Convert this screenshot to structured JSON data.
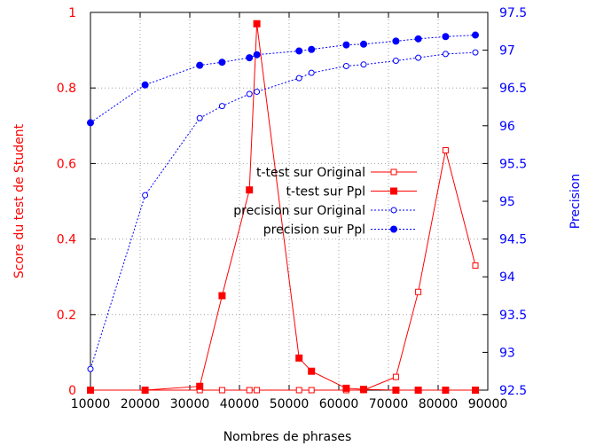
{
  "chart_data": {
    "type": "line",
    "xlabel": "Nombres de phrases",
    "ylabel_left": "Score du test de Student",
    "ylabel_right": "Precision",
    "xlim": [
      10000,
      90000
    ],
    "ylim_left": [
      0,
      1
    ],
    "ylim_right": [
      92.5,
      97.5
    ],
    "x_ticks": [
      10000,
      20000,
      30000,
      40000,
      50000,
      60000,
      70000,
      80000,
      90000
    ],
    "y_left_ticks": [
      0,
      0.2,
      0.4,
      0.6,
      0.8,
      1
    ],
    "y_right_ticks": [
      92.5,
      93,
      93.5,
      94,
      94.5,
      95,
      95.5,
      96,
      96.5,
      97,
      97.5
    ],
    "grid": true,
    "legend_position": "center",
    "colors": {
      "red": "#ff0000",
      "blue": "#0000ff",
      "grid": "#a0a0a0"
    },
    "series": [
      {
        "name": "t-test sur Original",
        "axis": "left",
        "style": "solid",
        "marker": "open-square",
        "color": "#ff0000",
        "points": [
          [
            10000,
            0
          ],
          [
            21000,
            0
          ],
          [
            32000,
            0
          ],
          [
            36500,
            0
          ],
          [
            42000,
            0
          ],
          [
            43500,
            0
          ],
          [
            52000,
            0
          ],
          [
            54500,
            0
          ],
          [
            61500,
            0
          ],
          [
            65000,
            0
          ],
          [
            71500,
            0.035
          ],
          [
            76000,
            0.26
          ],
          [
            81500,
            0.635
          ],
          [
            87500,
            0.33
          ]
        ]
      },
      {
        "name": "t-test sur Ppl",
        "axis": "left",
        "style": "solid",
        "marker": "filled-square",
        "color": "#ff0000",
        "points": [
          [
            10000,
            0
          ],
          [
            21000,
            0
          ],
          [
            32000,
            0.01
          ],
          [
            36500,
            0.25
          ],
          [
            42000,
            0.53
          ],
          [
            43500,
            0.97
          ],
          [
            52000,
            0.085
          ],
          [
            54500,
            0.05
          ],
          [
            61500,
            0.005
          ],
          [
            65000,
            0.002
          ],
          [
            71500,
            0
          ],
          [
            76000,
            0
          ],
          [
            81500,
            0
          ],
          [
            87500,
            0
          ]
        ]
      },
      {
        "name": "precision sur Original",
        "axis": "right",
        "style": "dotted",
        "marker": "open-circle",
        "color": "#0000ff",
        "points": [
          [
            10000,
            92.78
          ],
          [
            21000,
            95.08
          ],
          [
            32000,
            96.1
          ],
          [
            36500,
            96.26
          ],
          [
            42000,
            96.42
          ],
          [
            43500,
            96.45
          ],
          [
            52000,
            96.63
          ],
          [
            54500,
            96.7
          ],
          [
            61500,
            96.79
          ],
          [
            65000,
            96.81
          ],
          [
            71500,
            96.86
          ],
          [
            76000,
            96.9
          ],
          [
            81500,
            96.95
          ],
          [
            87500,
            96.97
          ]
        ]
      },
      {
        "name": "precision sur Ppl",
        "axis": "right",
        "style": "dotted",
        "marker": "filled-circle",
        "color": "#0000ff",
        "points": [
          [
            10000,
            96.04
          ],
          [
            21000,
            96.54
          ],
          [
            32000,
            96.8
          ],
          [
            36500,
            96.84
          ],
          [
            42000,
            96.9
          ],
          [
            43500,
            96.94
          ],
          [
            52000,
            96.99
          ],
          [
            54500,
            97.01
          ],
          [
            61500,
            97.07
          ],
          [
            65000,
            97.08
          ],
          [
            71500,
            97.12
          ],
          [
            76000,
            97.15
          ],
          [
            81500,
            97.18
          ],
          [
            87500,
            97.2
          ]
        ]
      }
    ]
  }
}
